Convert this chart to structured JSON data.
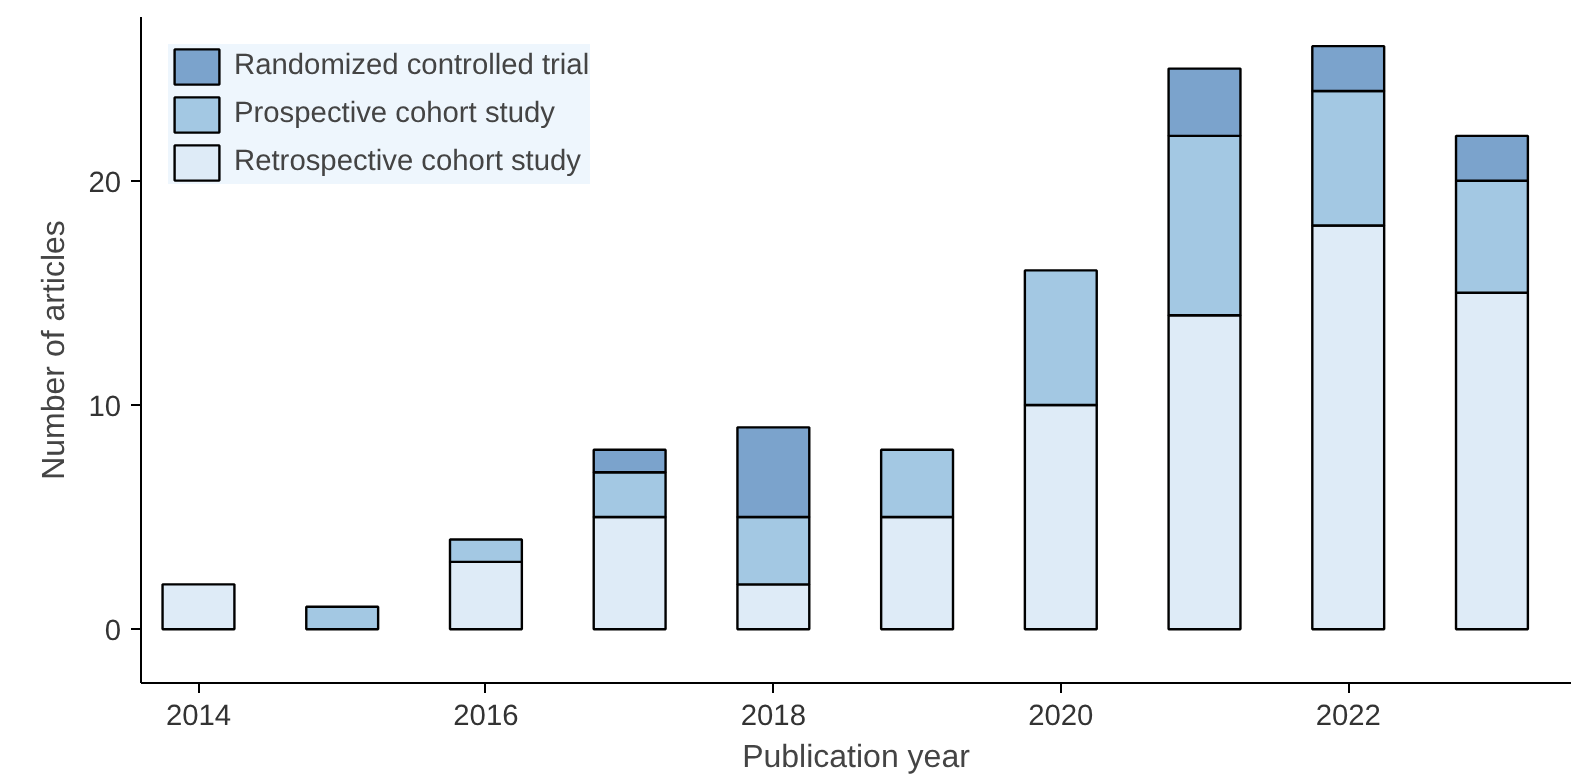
{
  "chart_data": {
    "type": "bar",
    "stacked": true,
    "xlabel": "Publication year",
    "ylabel": "Number of articles",
    "x": [
      2014,
      2015,
      2016,
      2017,
      2018,
      2019,
      2020,
      2021,
      2022,
      2023
    ],
    "series": [
      {
        "name": "Retrospective cohort study",
        "color": "#deebf7",
        "values": [
          2,
          0,
          3,
          5,
          2,
          5,
          10,
          14,
          18,
          15
        ]
      },
      {
        "name": "Prospective cohort study",
        "color": "#a3c8e3",
        "values": [
          0,
          1,
          1,
          2,
          3,
          3,
          6,
          8,
          6,
          5
        ]
      },
      {
        "name": "Randomized controlled trial",
        "color": "#7ba3cc",
        "values": [
          0,
          0,
          0,
          1,
          4,
          0,
          0,
          3,
          2,
          2
        ]
      }
    ],
    "xlim": [
      2013.6,
      2023.55
    ],
    "xticks": [
      2014,
      2016,
      2018,
      2020,
      2022
    ],
    "ylim": [
      -2.4,
      27.3
    ],
    "yticks": [
      0,
      10,
      20
    ],
    "grid": false,
    "legend": "top left"
  }
}
